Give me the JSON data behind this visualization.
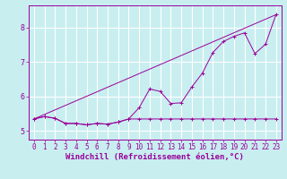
{
  "title": "",
  "xlabel": "Windchill (Refroidissement éolien,°C)",
  "background_color": "#c8eef0",
  "grid_color": "#ffffff",
  "line_color": "#990099",
  "xlim": [
    -0.5,
    23.5
  ],
  "ylim": [
    4.75,
    8.65
  ],
  "x_ticks": [
    0,
    1,
    2,
    3,
    4,
    5,
    6,
    7,
    8,
    9,
    10,
    11,
    12,
    13,
    14,
    15,
    16,
    17,
    18,
    19,
    20,
    21,
    22,
    23
  ],
  "y_ticks": [
    5,
    6,
    7,
    8
  ],
  "line1_x": [
    0,
    1,
    2,
    3,
    4,
    5,
    6,
    7,
    8,
    9,
    10,
    11,
    12,
    13,
    14,
    15,
    16,
    17,
    18,
    19,
    20,
    21,
    22,
    23
  ],
  "line1_y": [
    5.35,
    5.42,
    5.37,
    5.22,
    5.22,
    5.18,
    5.22,
    5.2,
    5.26,
    5.35,
    5.35,
    5.35,
    5.35,
    5.35,
    5.35,
    5.35,
    5.35,
    5.35,
    5.35,
    5.35,
    5.35,
    5.35,
    5.35,
    5.35
  ],
  "line2_x": [
    0,
    1,
    2,
    3,
    4,
    5,
    6,
    7,
    8,
    9,
    10,
    11,
    12,
    13,
    14,
    15,
    16,
    17,
    18,
    19,
    20,
    21,
    22,
    23
  ],
  "line2_y": [
    5.35,
    5.42,
    5.37,
    5.22,
    5.22,
    5.18,
    5.22,
    5.2,
    5.26,
    5.35,
    5.68,
    6.22,
    6.15,
    5.8,
    5.82,
    6.28,
    6.68,
    7.28,
    7.6,
    7.75,
    7.85,
    7.25,
    7.52,
    8.38
  ],
  "line3_x": [
    0,
    23
  ],
  "line3_y": [
    5.35,
    8.38
  ],
  "figsize": [
    3.2,
    2.0
  ],
  "dpi": 100,
  "tick_fontsize": 5.5,
  "xlabel_fontsize": 6.5
}
